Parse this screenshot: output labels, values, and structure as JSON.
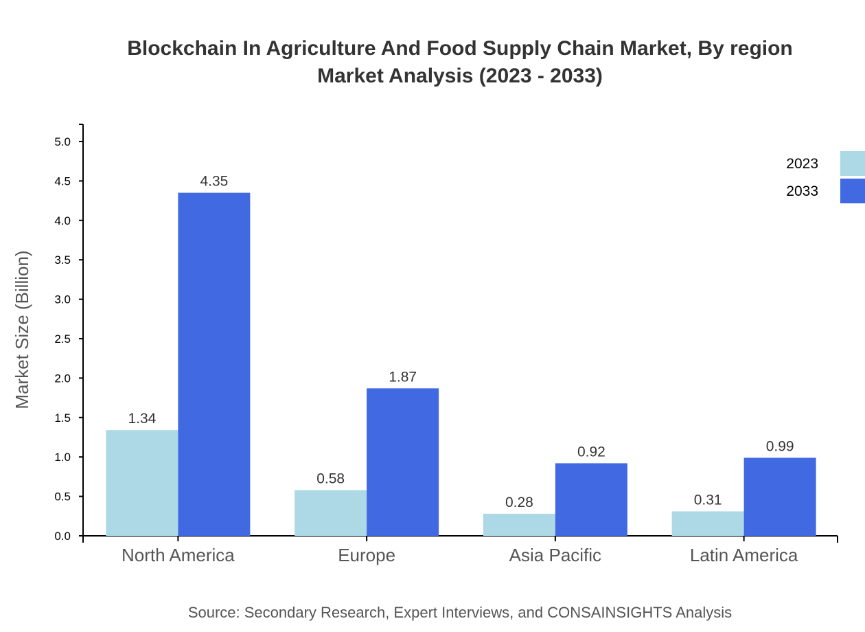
{
  "chart_data": {
    "type": "bar",
    "title": "Blockchain In Agriculture And Food Supply Chain Market, By region",
    "subtitle": "Market Analysis (2023 - 2033)",
    "xlabel": "",
    "ylabel": "Market Size (Billion)",
    "categories": [
      "North America",
      "Europe",
      "Asia Pacific",
      "Latin America"
    ],
    "series": [
      {
        "name": "2023",
        "color": "#add8e6",
        "values": [
          1.34,
          0.58,
          0.28,
          0.31
        ]
      },
      {
        "name": "2033",
        "color": "#4169e1",
        "values": [
          4.35,
          1.87,
          0.92,
          0.99
        ]
      }
    ],
    "ylim": [
      0,
      5.2
    ],
    "yticks": [
      "0.0",
      "0.5",
      "1.0",
      "1.5",
      "2.0",
      "2.5",
      "3.0",
      "3.5",
      "4.0",
      "4.5",
      "5.0"
    ],
    "grid": false,
    "legend_position": "top-right",
    "source": "Source: Secondary Research, Expert Interviews, and CONSAINSIGHTS Analysis"
  }
}
